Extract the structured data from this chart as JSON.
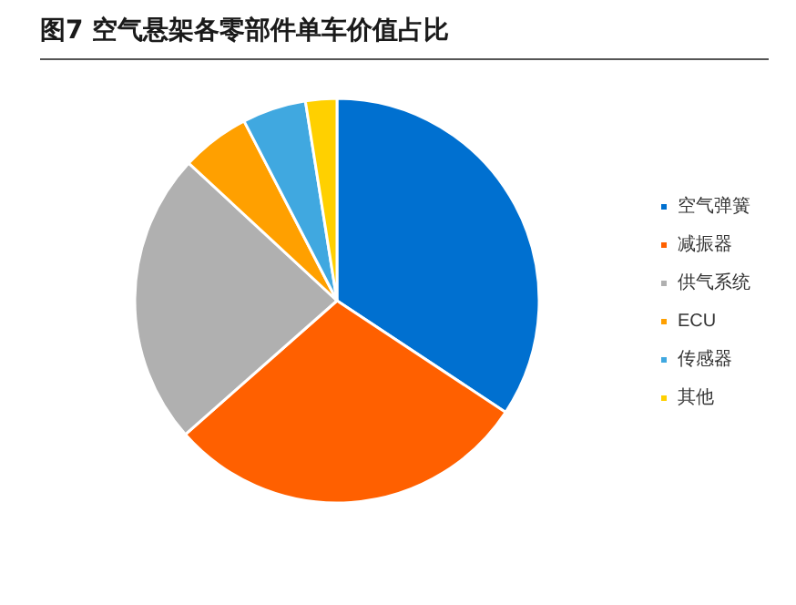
{
  "chart_data": {
    "type": "pie",
    "title": "图7  空气悬架各零部件单车价值占比",
    "categories": [
      "空气弹簧",
      "减振器",
      "供气系统",
      "ECU",
      "传感器",
      "其他"
    ],
    "values": [
      34.3,
      29.2,
      23.4,
      5.5,
      5.1,
      2.5
    ],
    "colors": [
      "#0070d0",
      "#ff6000",
      "#b0b0b0",
      "#ffa000",
      "#40a8e0",
      "#ffd000"
    ],
    "legend": "right"
  }
}
